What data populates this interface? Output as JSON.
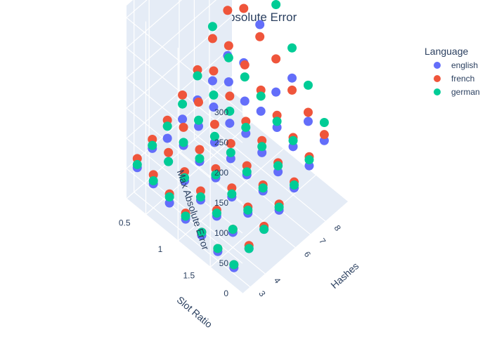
{
  "chart_data": {
    "type": "scatter3d",
    "title": "Max Absolute Error",
    "axes": {
      "x": {
        "label": "Hashes",
        "ticks": [
          "3",
          "4",
          "6",
          "7",
          "8"
        ],
        "range": [
          2.5,
          9.5
        ]
      },
      "y": {
        "label": "Slot Ratio",
        "ticks": [
          "0.5",
          "1",
          "1.5"
        ],
        "range": [
          0.2,
          2.0
        ]
      },
      "z": {
        "label": "Max Absolute Error",
        "ticks": [
          "0",
          "50",
          "100",
          "150",
          "200",
          "250",
          "300"
        ],
        "range": [
          0,
          320
        ]
      }
    },
    "legend": {
      "title": "Language",
      "placement": "top-right"
    },
    "series": [
      {
        "name": "english",
        "color": "#636efa",
        "points": [
          [
            3,
            0.25,
            45
          ],
          [
            4,
            0.25,
            55
          ],
          [
            5,
            0.25,
            50
          ],
          [
            6,
            0.25,
            60
          ],
          [
            7,
            0.25,
            70
          ],
          [
            8,
            0.25,
            80
          ],
          [
            9,
            0.25,
            100
          ],
          [
            3,
            0.5,
            40
          ],
          [
            4,
            0.5,
            55
          ],
          [
            5,
            0.5,
            60
          ],
          [
            6,
            0.5,
            70
          ],
          [
            7,
            0.5,
            80
          ],
          [
            8,
            0.5,
            100
          ],
          [
            9,
            0.5,
            110
          ],
          [
            3,
            0.75,
            30
          ],
          [
            4,
            0.75,
            45
          ],
          [
            5,
            0.75,
            55
          ],
          [
            6,
            0.75,
            65
          ],
          [
            7,
            0.75,
            75
          ],
          [
            8,
            0.75,
            90
          ],
          [
            9,
            0.75,
            195
          ],
          [
            3,
            1.0,
            25
          ],
          [
            4,
            1.0,
            35
          ],
          [
            5,
            1.0,
            50
          ],
          [
            6,
            1.0,
            60
          ],
          [
            7,
            1.0,
            80
          ],
          [
            8,
            1.0,
            95
          ],
          [
            9,
            1.0,
            105
          ],
          [
            3,
            1.25,
            20
          ],
          [
            4,
            1.25,
            30
          ],
          [
            5,
            1.25,
            40
          ],
          [
            6,
            1.25,
            55
          ],
          [
            7,
            1.25,
            70
          ],
          [
            8,
            1.25,
            90
          ],
          [
            9,
            1.25,
            150
          ],
          [
            3,
            1.5,
            15
          ],
          [
            4,
            1.5,
            25
          ],
          [
            5,
            1.5,
            35
          ],
          [
            6,
            1.5,
            50
          ],
          [
            7,
            1.5,
            60
          ],
          [
            8,
            1.5,
            80
          ],
          [
            9,
            1.5,
            100
          ],
          [
            3,
            1.75,
            10
          ],
          [
            4,
            1.75,
            20
          ],
          [
            5,
            1.75,
            30
          ],
          [
            6,
            1.75,
            40
          ],
          [
            7,
            1.75,
            55
          ],
          [
            8,
            1.75,
            70
          ],
          [
            9,
            1.75,
            90
          ]
        ]
      },
      {
        "name": "french",
        "color": "#ef553b",
        "points": [
          [
            3,
            0.25,
            60
          ],
          [
            4,
            0.25,
            70
          ],
          [
            5,
            0.25,
            80
          ],
          [
            6,
            0.25,
            100
          ],
          [
            7,
            0.25,
            120
          ],
          [
            8,
            0.25,
            150
          ],
          [
            9,
            0.25,
            175
          ],
          [
            3,
            0.5,
            55
          ],
          [
            4,
            0.5,
            70
          ],
          [
            5,
            0.5,
            90
          ],
          [
            6,
            0.5,
            110
          ],
          [
            7,
            0.5,
            140
          ],
          [
            8,
            0.5,
            160
          ],
          [
            9,
            0.5,
            200
          ],
          [
            3,
            0.75,
            45
          ],
          [
            4,
            0.75,
            60
          ],
          [
            5,
            0.75,
            75
          ],
          [
            6,
            0.75,
            95
          ],
          [
            7,
            0.75,
            120
          ],
          [
            8,
            0.75,
            150
          ],
          [
            9,
            0.75,
            175
          ],
          [
            3,
            1.0,
            35
          ],
          [
            4,
            1.0,
            50
          ],
          [
            5,
            1.0,
            65
          ],
          [
            6,
            1.0,
            85
          ],
          [
            7,
            1.0,
            100
          ],
          [
            8,
            1.0,
            130
          ],
          [
            9,
            1.0,
            160
          ],
          [
            3,
            1.25,
            25
          ],
          [
            4,
            1.25,
            40
          ],
          [
            5,
            1.25,
            55
          ],
          [
            6,
            1.25,
            70
          ],
          [
            7,
            1.25,
            90
          ],
          [
            8,
            1.25,
            110
          ],
          [
            9,
            1.25,
            130
          ],
          [
            3,
            1.5,
            20
          ],
          [
            4,
            1.5,
            30
          ],
          [
            5,
            1.5,
            45
          ],
          [
            6,
            1.5,
            60
          ],
          [
            7,
            1.5,
            75
          ],
          [
            8,
            1.5,
            95
          ],
          [
            9,
            1.5,
            115
          ],
          [
            3,
            1.75,
            15
          ],
          [
            4,
            1.75,
            25
          ],
          [
            5,
            1.75,
            35
          ],
          [
            6,
            1.75,
            50
          ],
          [
            7,
            1.75,
            65
          ],
          [
            8,
            1.75,
            85
          ],
          [
            9,
            1.75,
            100
          ]
        ]
      },
      {
        "name": "german",
        "color": "#00cc96",
        "points": [
          [
            3,
            0.25,
            50
          ],
          [
            4,
            0.25,
            60
          ],
          [
            5,
            0.25,
            70
          ],
          [
            6,
            0.25,
            85
          ],
          [
            7,
            0.25,
            110
          ],
          [
            8,
            0.25,
            170
          ],
          [
            9,
            0.25,
            320
          ],
          [
            3,
            0.5,
            45
          ],
          [
            4,
            0.5,
            55
          ],
          [
            5,
            0.5,
            65
          ],
          [
            6,
            0.5,
            80
          ],
          [
            7,
            0.5,
            100
          ],
          [
            8,
            0.5,
            140
          ],
          [
            9,
            0.5,
            310
          ],
          [
            3,
            0.75,
            40
          ],
          [
            4,
            0.75,
            50
          ],
          [
            5,
            0.75,
            60
          ],
          [
            6,
            0.75,
            75
          ],
          [
            7,
            0.75,
            95
          ],
          [
            8,
            0.75,
            130
          ],
          [
            9,
            0.75,
            300
          ],
          [
            3,
            1.0,
            30
          ],
          [
            4,
            1.0,
            40
          ],
          [
            5,
            1.0,
            55
          ],
          [
            6,
            1.0,
            70
          ],
          [
            7,
            1.0,
            90
          ],
          [
            8,
            1.0,
            120
          ],
          [
            9,
            1.0,
            250
          ],
          [
            3,
            1.25,
            25
          ],
          [
            4,
            1.25,
            35
          ],
          [
            5,
            1.25,
            45
          ],
          [
            6,
            1.25,
            60
          ],
          [
            7,
            1.25,
            80
          ],
          [
            8,
            1.25,
            100
          ],
          [
            9,
            1.25,
            200
          ],
          [
            3,
            1.5,
            20
          ],
          [
            4,
            1.5,
            30
          ],
          [
            5,
            1.5,
            40
          ],
          [
            6,
            1.5,
            55
          ],
          [
            7,
            1.5,
            70
          ],
          [
            8,
            1.5,
            90
          ],
          [
            9,
            1.5,
            160
          ],
          [
            3,
            1.75,
            15
          ],
          [
            4,
            1.75,
            20
          ],
          [
            5,
            1.75,
            30
          ],
          [
            6,
            1.75,
            45
          ],
          [
            7,
            1.75,
            60
          ],
          [
            8,
            1.75,
            80
          ],
          [
            9,
            1.75,
            120
          ]
        ]
      }
    ]
  }
}
